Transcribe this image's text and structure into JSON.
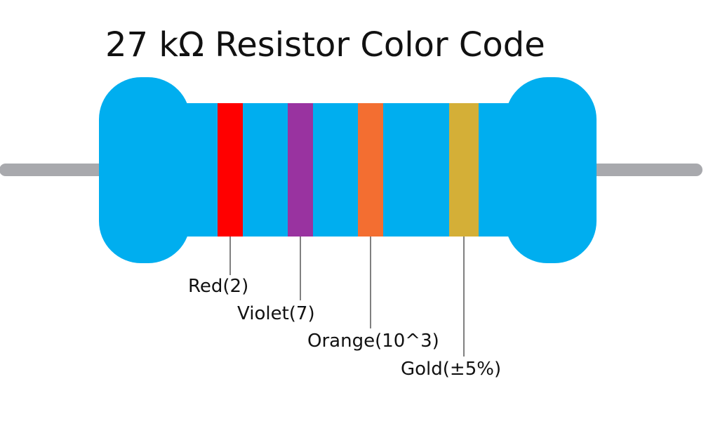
{
  "title": "27 kΩ Resistor Color Code",
  "colors": {
    "body": "#00AEEF",
    "lead": "#A8A9AD",
    "leader_line": "#000000",
    "text": "#111111",
    "background": "#FFFFFF"
  },
  "bands": [
    {
      "id": "band-1",
      "color_name": "red",
      "color": "#FF0000",
      "label": "Red(2)"
    },
    {
      "id": "band-2",
      "color_name": "violet",
      "color": "#9933A0",
      "label": "Violet(7)"
    },
    {
      "id": "band-3",
      "color_name": "orange",
      "color": "#F36E31",
      "label": "Orange(10^3)"
    },
    {
      "id": "band-4",
      "color_name": "gold",
      "color": "#D4AF37",
      "label": "Gold(±5%)"
    }
  ]
}
